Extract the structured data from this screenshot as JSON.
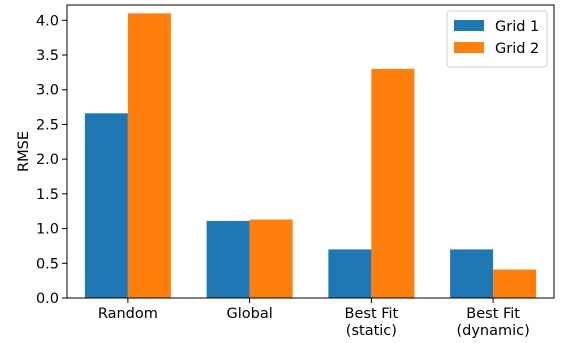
{
  "chart_data": {
    "type": "bar",
    "categories": [
      [
        "Random"
      ],
      [
        "Global"
      ],
      [
        "Best Fit",
        "(static)"
      ],
      [
        "Best Fit",
        "(dynamic)"
      ]
    ],
    "series": [
      {
        "name": "Grid 1",
        "values": [
          2.66,
          1.11,
          0.7,
          0.7
        ],
        "color": "#1f77b4"
      },
      {
        "name": "Grid 2",
        "values": [
          4.1,
          1.13,
          3.3,
          0.41
        ],
        "color": "#ff7f0e"
      }
    ],
    "ylabel": "RMSE",
    "xlabel": "",
    "title": "",
    "ylim": [
      0,
      4.22
    ],
    "yticks": [
      "0.0",
      "0.5",
      "1.0",
      "1.5",
      "2.0",
      "2.5",
      "3.0",
      "3.5",
      "4.0"
    ],
    "grid": false,
    "legend_position": "top-right"
  }
}
